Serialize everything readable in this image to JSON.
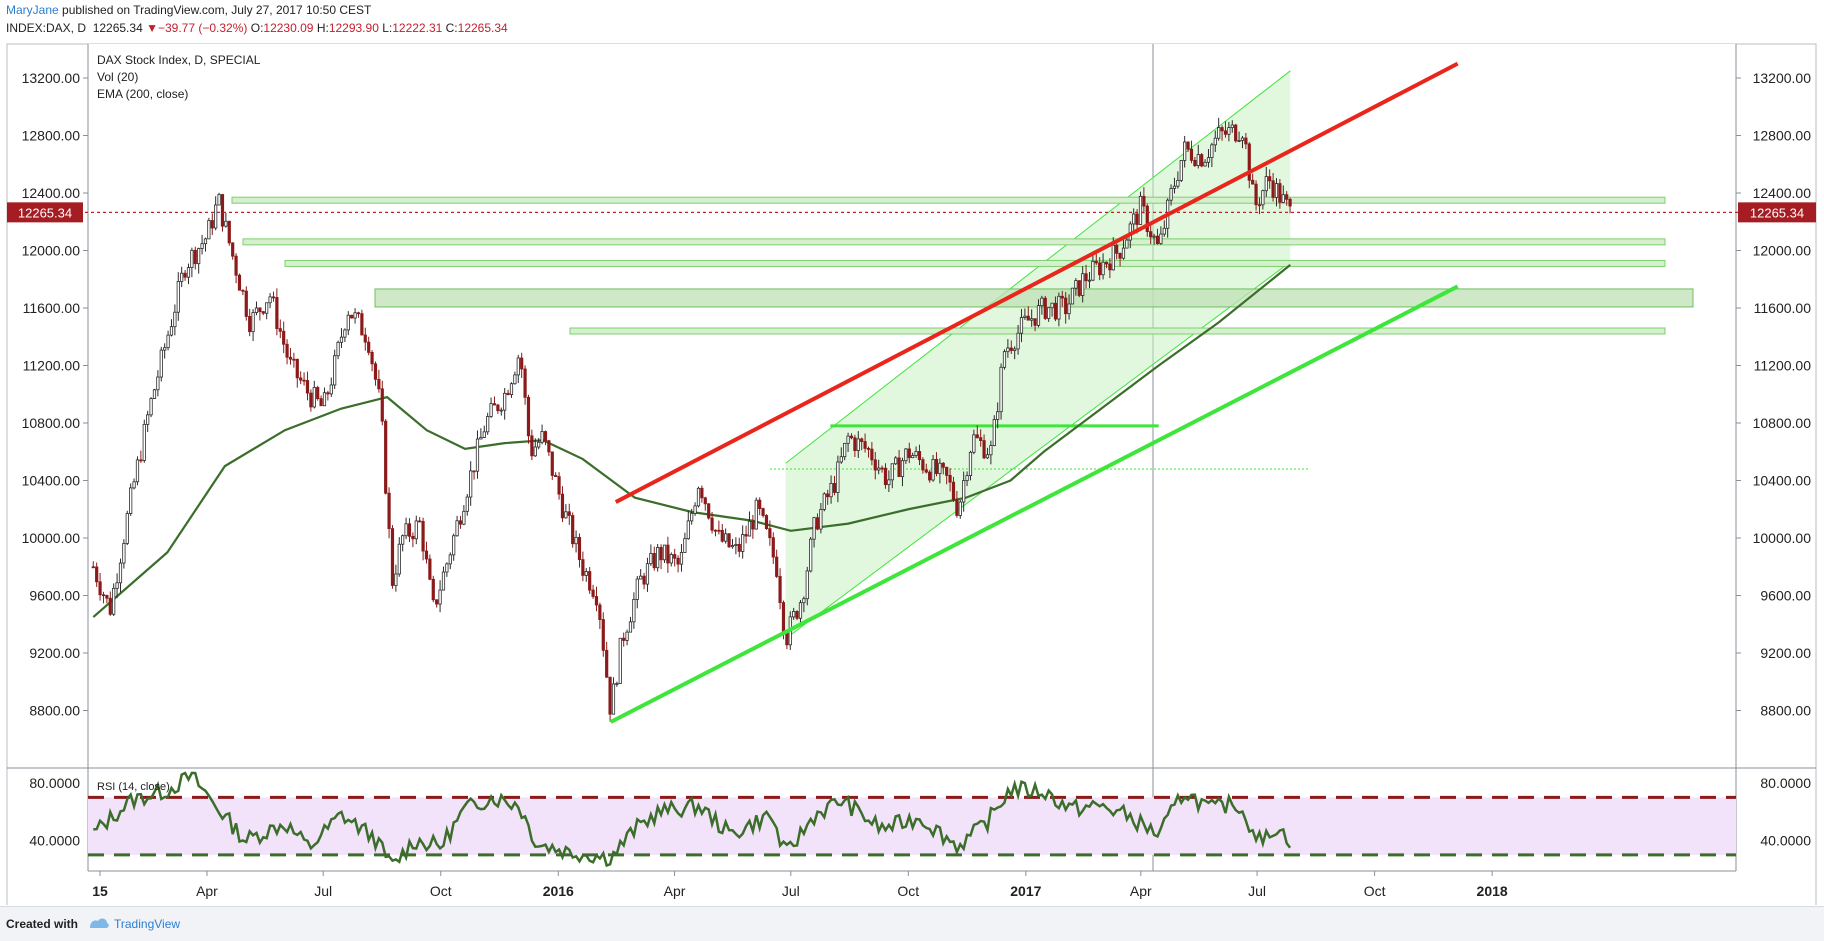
{
  "header": {
    "author": "MaryJane",
    "published": "published on TradingView.com, July 27, 2017 10:50 CEST",
    "symbol": "INDEX:DAX, D",
    "last": "12265.34",
    "change_arrow": "▼",
    "change": "−39.77 (−0.32%)",
    "o_label": "O:",
    "o": "12230.09",
    "h_label": "H:",
    "h": "12293.90",
    "l_label": "L:",
    "l": "12222.31",
    "c_label": "C:",
    "c": "12265.34"
  },
  "legend": {
    "title": "DAX Stock Index, D, SPECIAL",
    "vol": "Vol (20)",
    "ema": "EMA (200, close)",
    "rsi": "RSI (14, close)"
  },
  "footer": {
    "created_with": "Created with",
    "brand": "TradingView"
  },
  "colors": {
    "up": "#2b2b2b",
    "down": "#8b1a1a",
    "ema": "#3b6e2a",
    "resistance": "#e8261c",
    "support": "#3ee53a",
    "channel_fill": "#c8f0c2",
    "price_line": "#c3202d",
    "rsi_band": "#f3e3fa"
  },
  "chart_data": [
    {
      "type": "candlestick",
      "title": "DAX Stock Index, D, SPECIAL",
      "last_price_label": "12265.34",
      "y_ticks": [
        "13200.00",
        "12800.00",
        "12400.00",
        "12000.00",
        "11600.00",
        "11200.00",
        "10800.00",
        "10400.00",
        "10000.00",
        "9600.00",
        "9200.00",
        "8800.00"
      ],
      "x_ticks": [
        "2015",
        "Apr",
        "Jul",
        "Oct",
        "2016",
        "Apr",
        "Jul",
        "Oct",
        "2017",
        "Apr",
        "Jul",
        "Oct",
        "2018"
      ],
      "ylim": [
        8550,
        13550
      ],
      "price_path": [
        [
          "2015-01-02",
          9800
        ],
        [
          "2015-01-15",
          9500
        ],
        [
          "2015-02-01",
          10300
        ],
        [
          "2015-02-15",
          10900
        ],
        [
          "2015-03-01",
          11400
        ],
        [
          "2015-03-15",
          11900
        ],
        [
          "2015-04-01",
          12100
        ],
        [
          "2015-04-10",
          12350
        ],
        [
          "2015-04-20",
          12000
        ],
        [
          "2015-05-05",
          11500
        ],
        [
          "2015-05-20",
          11700
        ],
        [
          "2015-06-05",
          11200
        ],
        [
          "2015-06-20",
          11000
        ],
        [
          "2015-07-01",
          10900
        ],
        [
          "2015-07-10",
          11200
        ],
        [
          "2015-07-20",
          11600
        ],
        [
          "2015-08-05",
          11400
        ],
        [
          "2015-08-15",
          10900
        ],
        [
          "2015-08-24",
          9700
        ],
        [
          "2015-09-01",
          10000
        ],
        [
          "2015-09-15",
          10100
        ],
        [
          "2015-09-25",
          9500
        ],
        [
          "2015-10-05",
          9800
        ],
        [
          "2015-10-20",
          10300
        ],
        [
          "2015-11-05",
          10800
        ],
        [
          "2015-11-20",
          11000
        ],
        [
          "2015-12-02",
          11300
        ],
        [
          "2015-12-10",
          10600
        ],
        [
          "2015-12-20",
          10700
        ],
        [
          "2016-01-05",
          10200
        ],
        [
          "2016-01-20",
          9800
        ],
        [
          "2016-02-01",
          9600
        ],
        [
          "2016-02-11",
          8800
        ],
        [
          "2016-02-20",
          9300
        ],
        [
          "2016-03-05",
          9700
        ],
        [
          "2016-03-20",
          9900
        ],
        [
          "2016-04-05",
          9800
        ],
        [
          "2016-04-20",
          10400
        ],
        [
          "2016-05-05",
          10000
        ],
        [
          "2016-05-20",
          9900
        ],
        [
          "2016-06-05",
          10200
        ],
        [
          "2016-06-20",
          9800
        ],
        [
          "2016-06-27",
          9300
        ],
        [
          "2016-07-10",
          9600
        ],
        [
          "2016-07-20",
          10100
        ],
        [
          "2016-08-05",
          10400
        ],
        [
          "2016-08-15",
          10700
        ],
        [
          "2016-09-01",
          10600
        ],
        [
          "2016-09-15",
          10400
        ],
        [
          "2016-10-01",
          10600
        ],
        [
          "2016-10-15",
          10500
        ],
        [
          "2016-11-01",
          10400
        ],
        [
          "2016-11-09",
          10200
        ],
        [
          "2016-11-20",
          10700
        ],
        [
          "2016-12-05",
          10600
        ],
        [
          "2016-12-15",
          11300
        ],
        [
          "2017-01-01",
          11500
        ],
        [
          "2017-01-15",
          11600
        ],
        [
          "2017-02-01",
          11600
        ],
        [
          "2017-02-15",
          11800
        ],
        [
          "2017-03-01",
          11900
        ],
        [
          "2017-03-15",
          12000
        ],
        [
          "2017-04-01",
          12300
        ],
        [
          "2017-04-15",
          12000
        ],
        [
          "2017-04-25",
          12400
        ],
        [
          "2017-05-05",
          12700
        ],
        [
          "2017-05-20",
          12650
        ],
        [
          "2017-06-01",
          12800
        ],
        [
          "2017-06-20",
          12850
        ],
        [
          "2017-06-29",
          12300
        ],
        [
          "2017-07-10",
          12500
        ],
        [
          "2017-07-27",
          12265.34
        ]
      ],
      "ema_200": [
        [
          "2015-01-02",
          9450
        ],
        [
          "2015-03-01",
          9900
        ],
        [
          "2015-04-15",
          10500
        ],
        [
          "2015-06-01",
          10750
        ],
        [
          "2015-07-15",
          10900
        ],
        [
          "2015-08-20",
          10980
        ],
        [
          "2015-09-20",
          10750
        ],
        [
          "2015-10-20",
          10620
        ],
        [
          "2015-11-20",
          10660
        ],
        [
          "2015-12-20",
          10680
        ],
        [
          "2016-01-20",
          10550
        ],
        [
          "2016-03-01",
          10280
        ],
        [
          "2016-04-15",
          10180
        ],
        [
          "2016-06-01",
          10120
        ],
        [
          "2016-07-01",
          10050
        ],
        [
          "2016-08-15",
          10100
        ],
        [
          "2016-10-01",
          10200
        ],
        [
          "2016-11-15",
          10280
        ],
        [
          "2016-12-20",
          10400
        ],
        [
          "2017-01-15",
          10600
        ],
        [
          "2017-03-01",
          10900
        ],
        [
          "2017-04-15",
          11200
        ],
        [
          "2017-06-01",
          11500
        ],
        [
          "2017-07-27",
          11900
        ]
      ],
      "resistance_line": [
        [
          "2016-02-15",
          10250
        ],
        [
          "2017-12-05",
          13300
        ]
      ],
      "support_line": [
        [
          "2016-02-11",
          8720
        ],
        [
          "2017-12-05",
          11750
        ]
      ],
      "channel": {
        "lower": [
          [
            "2016-06-27",
            9300
          ],
          [
            "2017-07-27",
            11920
          ]
        ],
        "upper": [
          [
            "2016-06-27",
            10520
          ],
          [
            "2017-07-27",
            13250
          ]
        ]
      },
      "horizontal_levels": [
        12350,
        12060,
        11910,
        11670,
        11440
      ],
      "level_10780": [
        [
          "2016-08-01",
          10780
        ],
        [
          "2017-04-15",
          10780
        ]
      ]
    },
    {
      "type": "line",
      "title": "RSI (14, close)",
      "y_ticks": [
        "80.0000",
        "40.0000"
      ],
      "ylim": [
        20,
        88
      ],
      "overbought": 70,
      "oversold": 30,
      "values": [
        [
          "2015-01-02",
          45
        ],
        [
          "2015-02-01",
          68
        ],
        [
          "2015-03-01",
          75
        ],
        [
          "2015-03-20",
          85
        ],
        [
          "2015-04-10",
          62
        ],
        [
          "2015-05-01",
          40
        ],
        [
          "2015-06-01",
          52
        ],
        [
          "2015-06-20",
          35
        ],
        [
          "2015-07-15",
          58
        ],
        [
          "2015-08-10",
          42
        ],
        [
          "2015-08-24",
          22
        ],
        [
          "2015-09-10",
          40
        ],
        [
          "2015-10-01",
          36
        ],
        [
          "2015-10-20",
          62
        ],
        [
          "2015-11-10",
          70
        ],
        [
          "2015-12-01",
          65
        ],
        [
          "2015-12-15",
          38
        ],
        [
          "2016-01-10",
          32
        ],
        [
          "2016-02-11",
          28
        ],
        [
          "2016-03-01",
          48
        ],
        [
          "2016-03-20",
          60
        ],
        [
          "2016-04-20",
          64
        ],
        [
          "2016-05-15",
          44
        ],
        [
          "2016-06-15",
          58
        ],
        [
          "2016-06-27",
          30
        ],
        [
          "2016-07-20",
          58
        ],
        [
          "2016-08-10",
          68
        ],
        [
          "2016-09-10",
          48
        ],
        [
          "2016-10-10",
          56
        ],
        [
          "2016-11-09",
          36
        ],
        [
          "2016-12-01",
          52
        ],
        [
          "2016-12-20",
          76
        ],
        [
          "2017-01-15",
          74
        ],
        [
          "2017-02-05",
          62
        ],
        [
          "2017-03-01",
          64
        ],
        [
          "2017-03-20",
          58
        ],
        [
          "2017-04-15",
          44
        ],
        [
          "2017-05-05",
          74
        ],
        [
          "2017-05-25",
          62
        ],
        [
          "2017-06-15",
          66
        ],
        [
          "2017-07-05",
          38
        ],
        [
          "2017-07-15",
          50
        ],
        [
          "2017-07-27",
          40
        ]
      ]
    }
  ]
}
